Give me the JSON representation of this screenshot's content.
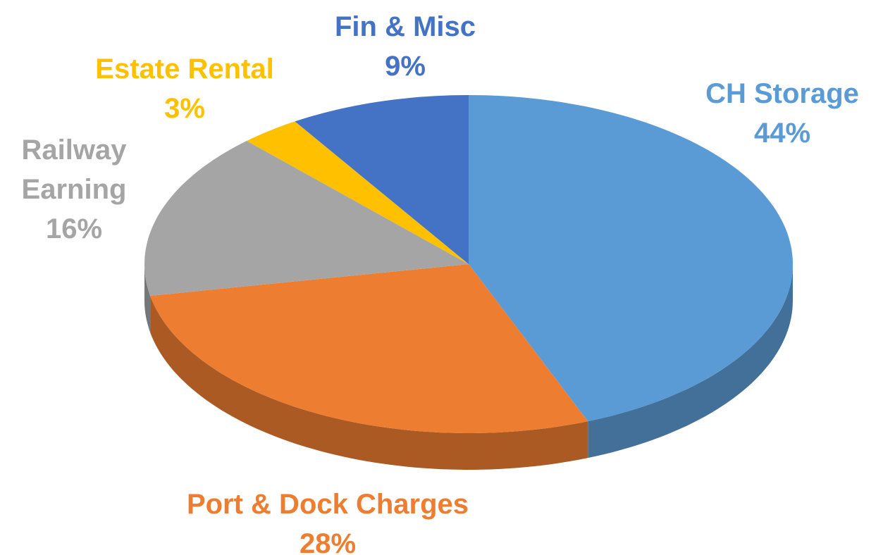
{
  "chart_data": {
    "type": "pie",
    "categories": [
      "CH Storage",
      "Port & Dock Charges",
      "Railway Earning",
      "Estate Rental",
      "Fin & Misc"
    ],
    "values": [
      44,
      28,
      16,
      3,
      9
    ],
    "value_labels": [
      "44%",
      "28%",
      "16%",
      "3%",
      "9%"
    ],
    "colors": [
      "#5b9bd5",
      "#ed7d31",
      "#a5a5a5",
      "#ffc000",
      "#4472c4"
    ]
  }
}
